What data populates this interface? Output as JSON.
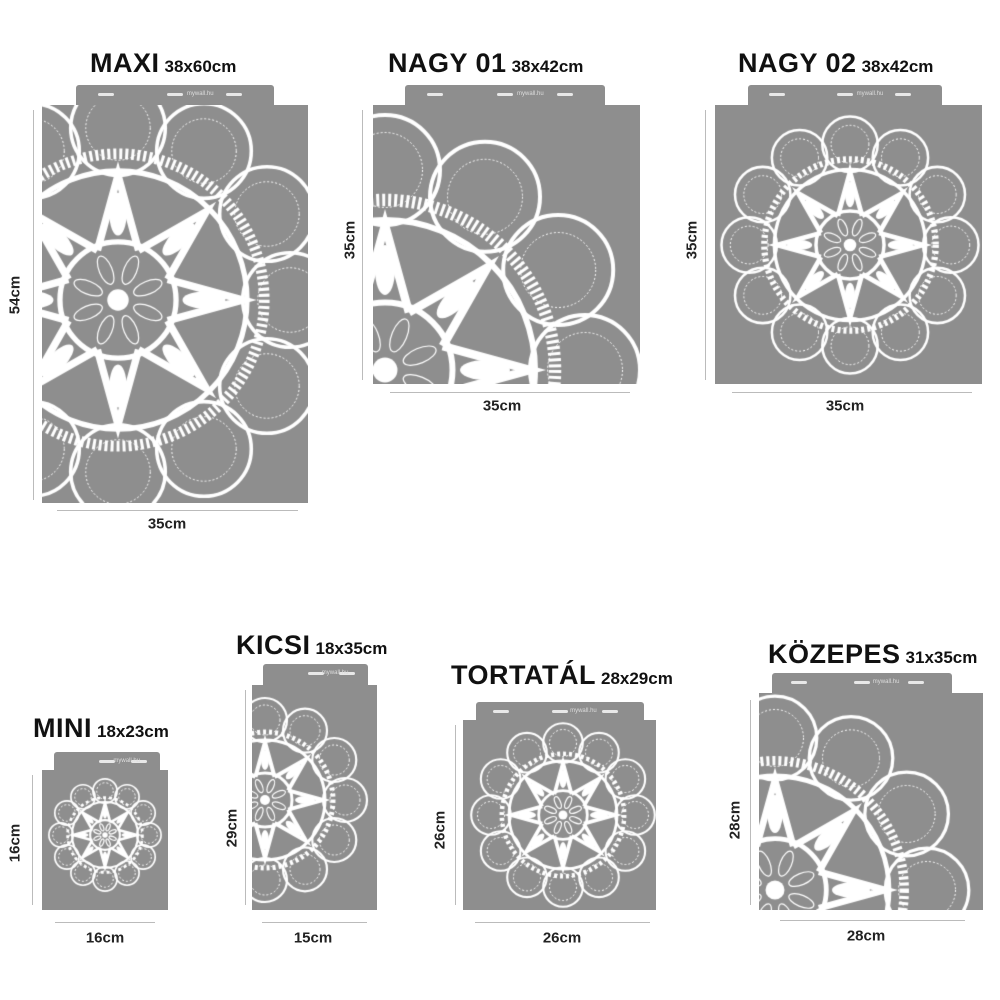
{
  "brand": "mywall.hu",
  "colors": {
    "stencil": "#8e8e8e",
    "pattern": "#ffffff",
    "text": "#111111"
  },
  "stencils": [
    {
      "name": "MAXI",
      "size": "38x60cm",
      "height_label": "54cm",
      "width_label": "35cm",
      "pattern": "half-mandala"
    },
    {
      "name": "NAGY 01",
      "size": "38x42cm",
      "height_label": "35cm",
      "width_label": "35cm",
      "pattern": "quarter-mandala"
    },
    {
      "name": "NAGY 02",
      "size": "38x42cm",
      "height_label": "35cm",
      "width_label": "35cm",
      "pattern": "full-mandala"
    },
    {
      "name": "MINI",
      "size": "18x23cm",
      "height_label": "16cm",
      "width_label": "16cm",
      "pattern": "full-mandala"
    },
    {
      "name": "KICSI",
      "size": "18x35cm",
      "height_label": "29cm",
      "width_label": "15cm",
      "pattern": "half-mandala"
    },
    {
      "name": "TORTATÁL",
      "size": "28x29cm",
      "height_label": "26cm",
      "width_label": "26cm",
      "pattern": "full-mandala"
    },
    {
      "name": "KÖZEPES",
      "size": "31x35cm",
      "height_label": "28cm",
      "width_label": "28cm",
      "pattern": "quarter-mandala"
    }
  ]
}
